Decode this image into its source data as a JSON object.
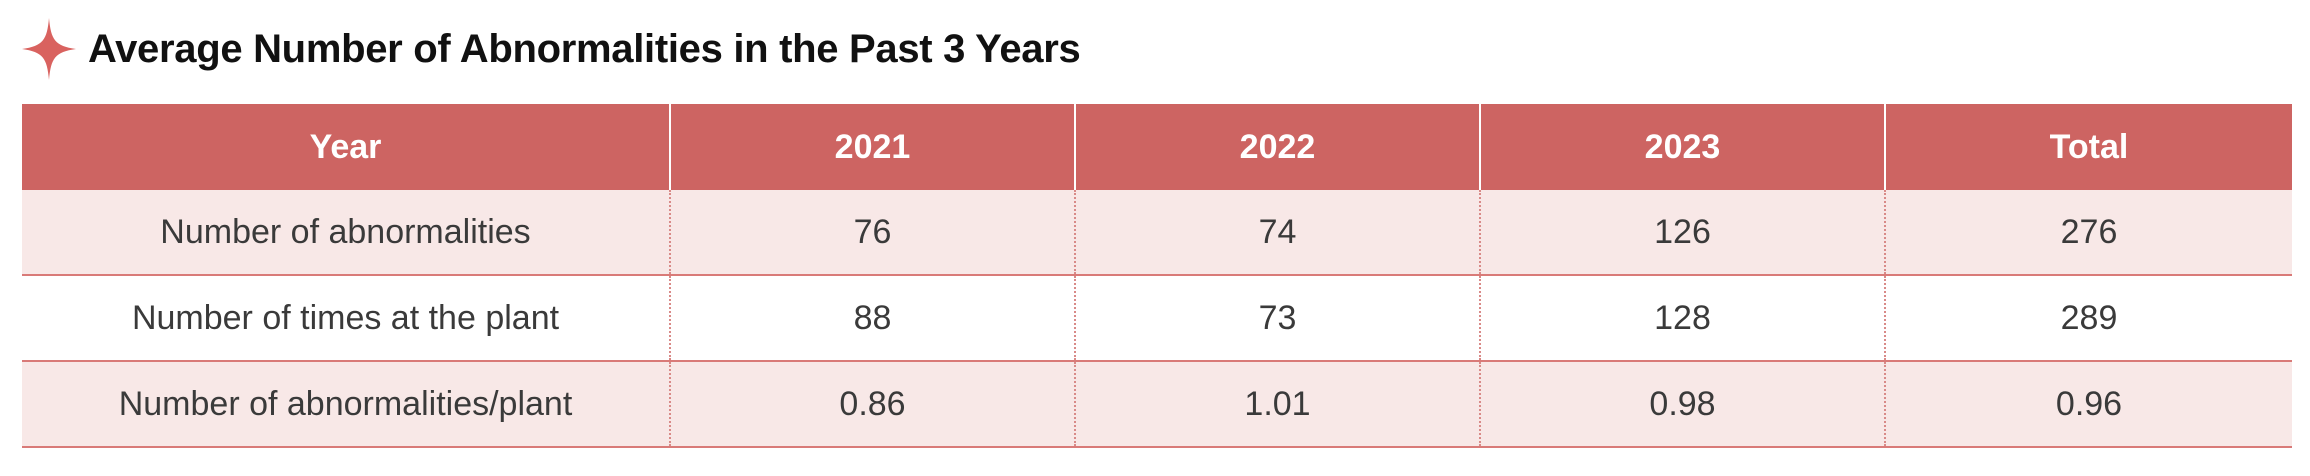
{
  "title": "Average Number of Abnormalities in the Past 3 Years",
  "colors": {
    "accent": "#cd6462",
    "row_shade": "#f8e8e7",
    "row_border": "#d97a78"
  },
  "table": {
    "headers": [
      "Year",
      "2021",
      "2022",
      "2023",
      "Total"
    ],
    "rows": [
      [
        "Number of abnormalities",
        "76",
        "74",
        "126",
        "276"
      ],
      [
        "Number of times at the plant",
        "88",
        "73",
        "128",
        "289"
      ],
      [
        "Number of abnormalities/plant",
        "0.86",
        "1.01",
        "0.98",
        "0.96"
      ]
    ]
  }
}
